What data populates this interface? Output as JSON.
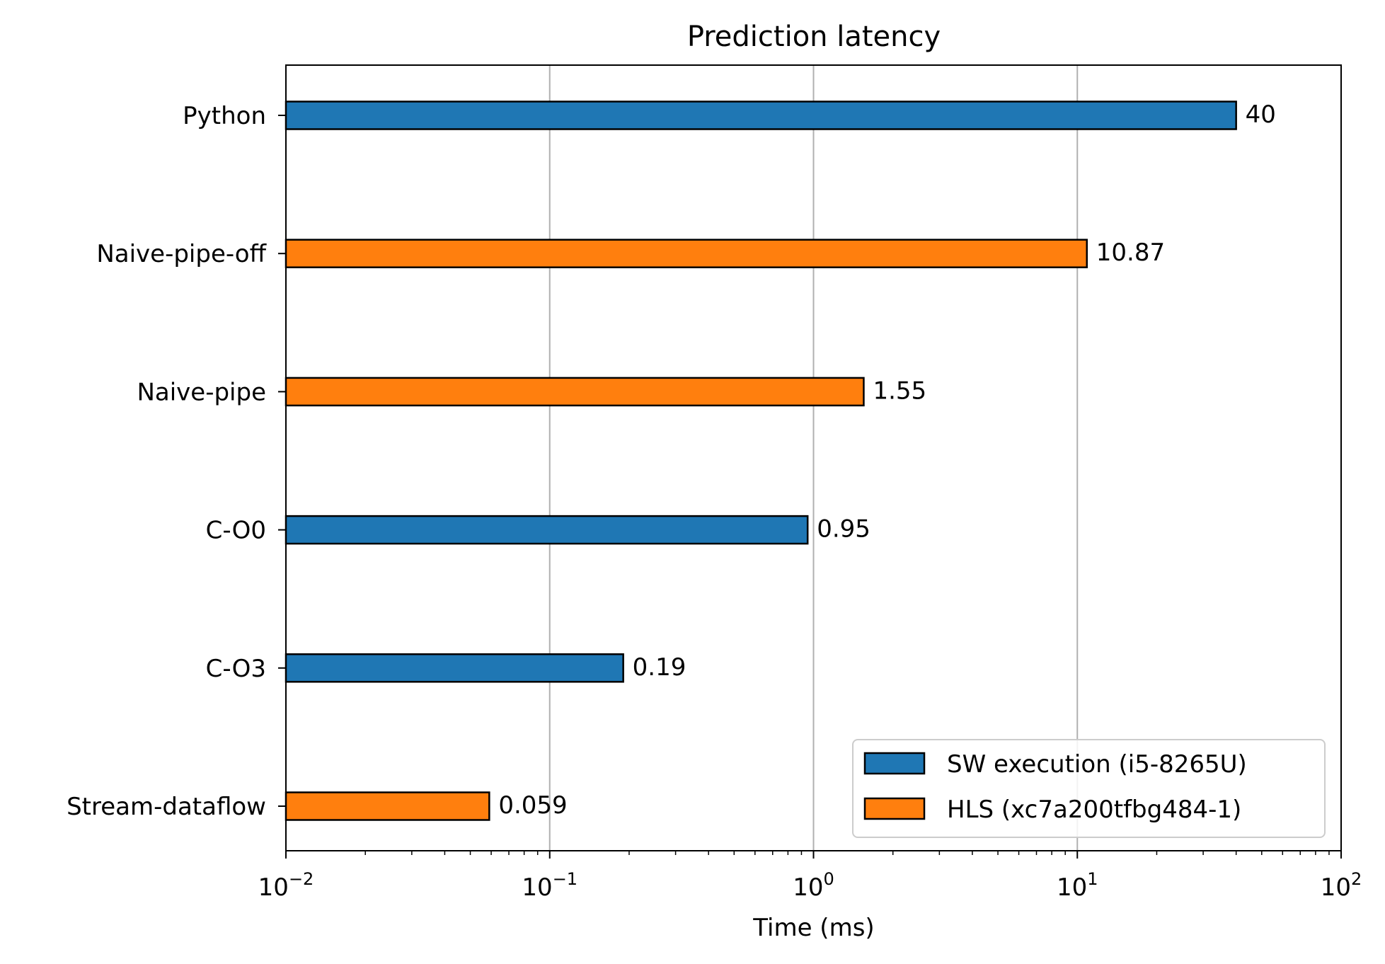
{
  "chart_data": {
    "type": "bar",
    "orientation": "horizontal",
    "title": "Prediction latency",
    "xlabel": "Time (ms)",
    "ylabel": "",
    "xscale": "log",
    "xlim": [
      0.01,
      100
    ],
    "x_ticks": [
      {
        "value": 0.01,
        "base": "10",
        "exp": "−2"
      },
      {
        "value": 0.1,
        "base": "10",
        "exp": "−1"
      },
      {
        "value": 1,
        "base": "10",
        "exp": "0"
      },
      {
        "value": 10,
        "base": "10",
        "exp": "1"
      },
      {
        "value": 100,
        "base": "10",
        "exp": "2"
      }
    ],
    "grid": "vertical major",
    "legend_position": "lower-right",
    "series": [
      {
        "name": "SW execution (i5-8265U)",
        "color": "#1f77b4"
      },
      {
        "name": "HLS (xc7a200tfbg484-1)",
        "color": "#ff7f0e"
      }
    ],
    "bars": [
      {
        "category": "Python",
        "value": 40,
        "label": "40",
        "series": 0
      },
      {
        "category": "Naive-pipe-off",
        "value": 10.87,
        "label": "10.87",
        "series": 1
      },
      {
        "category": "Naive-pipe",
        "value": 1.55,
        "label": "1.55",
        "series": 1
      },
      {
        "category": "C-O0",
        "value": 0.95,
        "label": "0.95",
        "series": 0
      },
      {
        "category": "C-O3",
        "value": 0.19,
        "label": "0.19",
        "series": 0
      },
      {
        "category": "Stream-dataflow",
        "value": 0.059,
        "label": "0.059",
        "series": 1
      }
    ]
  }
}
